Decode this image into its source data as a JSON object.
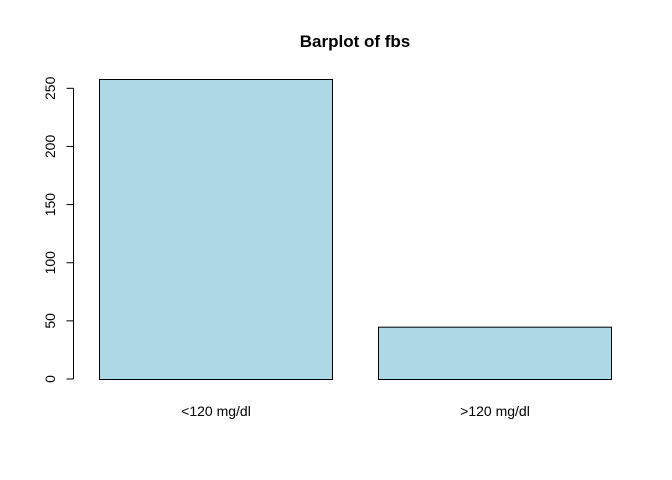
{
  "chart_data": {
    "type": "bar",
    "title": "Barplot of fbs",
    "xlabel": "",
    "ylabel": "",
    "categories": [
      "<120 mg/dl",
      ">120 mg/dl"
    ],
    "values": [
      258,
      45
    ],
    "ylim": [
      0,
      258
    ],
    "y_ticks": [
      0,
      50,
      100,
      150,
      200,
      250
    ],
    "y_tick_labels": [
      "0",
      "50",
      "100",
      "150",
      "200",
      "250"
    ],
    "grid": false,
    "legend": "none",
    "colors": {
      "bar_fill": "#add8e6",
      "bar_stroke": "#000000",
      "axis": "#000000",
      "text": "#000000",
      "background": "#ffffff"
    }
  }
}
